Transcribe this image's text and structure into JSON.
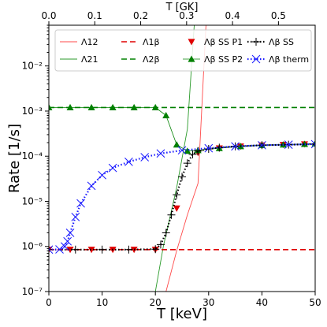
{
  "chart_data": {
    "type": "line",
    "xlabel": "T [keV]",
    "ylabel": "Rate [1/s]",
    "top_xlabel": "T [GK]",
    "xlim": [
      0,
      50
    ],
    "top_xlim": [
      0,
      0.58
    ],
    "ylim": [
      1e-07,
      0.08
    ],
    "yscale": "log",
    "x_ticks": [
      0,
      10,
      20,
      30,
      40,
      50
    ],
    "top_ticks": [
      0.0,
      0.1,
      0.2,
      0.3,
      0.4,
      0.5
    ],
    "y_ticks": [
      {
        "value": 1e-07,
        "label": "10⁻⁷"
      },
      {
        "value": 1e-06,
        "label": "10⁻⁶"
      },
      {
        "value": 1e-05,
        "label": "10⁻⁵"
      },
      {
        "value": 0.0001,
        "label": "10⁻⁴"
      },
      {
        "value": 0.001,
        "label": "10⁻³"
      },
      {
        "value": 0.01,
        "label": "10⁻²"
      }
    ],
    "legend_position": "top",
    "series": [
      {
        "name": "Λ12",
        "color": "#ff4a4a",
        "style": "solid",
        "x": [
          22,
          24,
          26,
          28,
          29.5
        ],
        "y": [
          1e-07,
          8e-07,
          5e-06,
          2.5e-05,
          0.08
        ]
      },
      {
        "name": "Λ21",
        "color": "#2a9a2a",
        "style": "solid",
        "x": [
          20,
          21.5,
          24,
          26,
          27.3
        ],
        "y": [
          1e-07,
          1e-06,
          2e-05,
          0.0004,
          0.08
        ]
      },
      {
        "name": "Λ1β",
        "color": "#e00000",
        "style": "dashed",
        "x": [
          0,
          50
        ],
        "y": [
          8.5e-07,
          8.5e-07
        ]
      },
      {
        "name": "Λ2β",
        "color": "#008000",
        "style": "dashed",
        "x": [
          0,
          50
        ],
        "y": [
          0.0012,
          0.0012
        ]
      },
      {
        "name": "Λβ SS P1",
        "color": "#e00000",
        "style": "none",
        "marker": "tri-down",
        "x": [
          0,
          4,
          8,
          12,
          16,
          20,
          24,
          28,
          32,
          36,
          40,
          44,
          48
        ],
        "y": [
          8.5e-07,
          8.5e-07,
          8.5e-07,
          8.5e-07,
          8.5e-07,
          8.5e-07,
          7e-06,
          0.00012,
          0.00015,
          0.000165,
          0.000175,
          0.00018,
          0.000185
        ]
      },
      {
        "name": "Λβ SS P2",
        "color": "#008000",
        "style": "thin",
        "marker": "tri-up",
        "x": [
          0,
          4,
          8,
          12,
          16,
          20,
          22,
          24,
          26,
          28,
          32,
          36,
          40,
          44,
          48,
          50
        ],
        "y": [
          0.0012,
          0.0012,
          0.0012,
          0.0012,
          0.0012,
          0.0012,
          0.0008,
          0.00018,
          0.00013,
          0.000135,
          0.00015,
          0.000165,
          0.000175,
          0.00018,
          0.000185,
          0.00019
        ]
      },
      {
        "name": "Λβ SS",
        "color": "#000000",
        "style": "dotted",
        "marker": "plus",
        "x": [
          0,
          5,
          10,
          15,
          20,
          21,
          22,
          23,
          24,
          25,
          26,
          27,
          28,
          30,
          32,
          35,
          40,
          45,
          50
        ],
        "y": [
          8.5e-07,
          8.5e-07,
          8.5e-07,
          8.5e-07,
          8.7e-07,
          1.1e-06,
          2e-06,
          5e-06,
          1.4e-05,
          3.5e-05,
          7e-05,
          0.00011,
          0.00013,
          0.000145,
          0.000155,
          0.000165,
          0.000175,
          0.00018,
          0.000185
        ]
      },
      {
        "name": "Λβ therm",
        "color": "#1a1aff",
        "style": "dotted",
        "marker": "x",
        "x": [
          0,
          2,
          3,
          3.5,
          4,
          5,
          6,
          8,
          10,
          12,
          15,
          18,
          21,
          25,
          30,
          35,
          40,
          45,
          50
        ],
        "y": [
          8.5e-07,
          8.6e-07,
          1e-06,
          1.3e-06,
          2e-06,
          4.5e-06,
          9e-06,
          2.2e-05,
          3.8e-05,
          5.5e-05,
          7.5e-05,
          9.5e-05,
          0.000115,
          0.000135,
          0.00015,
          0.000165,
          0.000175,
          0.00018,
          0.000185
        ]
      }
    ],
    "legend": [
      {
        "label": "Λ12",
        "series": 0
      },
      {
        "label": "Λ1β",
        "series": 2
      },
      {
        "label": "Λβ SS P1",
        "series": 4
      },
      {
        "label": "Λβ SS",
        "series": 6
      },
      {
        "label": "Λ21",
        "series": 1
      },
      {
        "label": "Λ2β",
        "series": 3
      },
      {
        "label": "Λβ SS P2",
        "series": 5
      },
      {
        "label": "Λβ therm",
        "series": 7
      }
    ]
  }
}
